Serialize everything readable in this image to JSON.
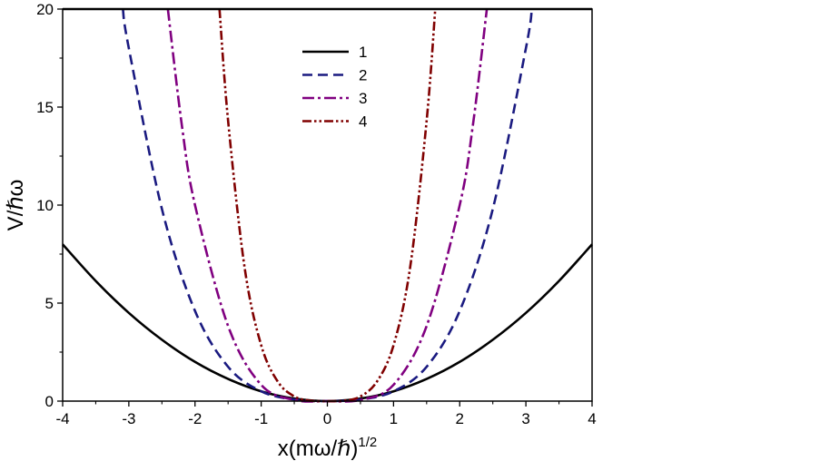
{
  "chart_data": {
    "type": "line",
    "xlabel": "x(mω/ℏ)",
    "xlabel_sup": "1/2",
    "ylabel": "V/ℏω",
    "xlim": [
      -4,
      4
    ],
    "ylim": [
      0,
      20
    ],
    "xticks": [
      -4,
      -3,
      -2,
      -1,
      0,
      1,
      2,
      3,
      4
    ],
    "xtick_labels": [
      "-4",
      "-3",
      "-2",
      "-1",
      "0",
      "1",
      "2",
      "3",
      "4"
    ],
    "yticks": [
      0,
      5,
      10,
      15,
      20
    ],
    "ytick_labels": [
      "0",
      "5",
      "10",
      "15",
      "20"
    ],
    "grid": false,
    "legend_position": "top-center",
    "series": [
      {
        "name": "1",
        "color": "#000000",
        "dash": "solid",
        "x": [
          -4,
          -3.5,
          -3,
          -2.5,
          -2,
          -1.5,
          -1,
          -0.5,
          0,
          0.5,
          1,
          1.5,
          2,
          2.5,
          3,
          3.5,
          4
        ],
        "y": [
          8,
          6.13,
          4.5,
          3.13,
          2,
          1.13,
          0.5,
          0.13,
          0,
          0.13,
          0.5,
          1.13,
          2,
          3.13,
          4.5,
          6.13,
          8
        ]
      },
      {
        "name": "2",
        "color": "#1a1a80",
        "dash": "dash",
        "x": [
          -3.09,
          -3,
          -2.5,
          -2,
          -1.5,
          -1,
          -0.5,
          0,
          0.5,
          1,
          1.5,
          2,
          2.5,
          3,
          3.09
        ],
        "y": [
          20,
          18.0,
          9.8,
          4.6,
          1.75,
          0.5,
          0.08,
          0,
          0.08,
          0.5,
          1.75,
          4.6,
          9.8,
          18.0,
          20
        ]
      },
      {
        "name": "3",
        "color": "#800080",
        "dash": "dashdot",
        "x": [
          -2.41,
          -2.2,
          -2,
          -1.5,
          -1,
          -0.5,
          0,
          0.5,
          1,
          1.5,
          2,
          2.2,
          2.41
        ],
        "y": [
          20,
          14.1,
          10.0,
          3.83,
          0.83,
          0.06,
          0,
          0.06,
          0.83,
          3.83,
          10.0,
          14.1,
          20
        ]
      },
      {
        "name": "4",
        "color": "#800000",
        "dash": "dashdotdot",
        "x": [
          -1.63,
          -1.5,
          -1.25,
          -1,
          -0.75,
          -0.5,
          -0.25,
          0,
          0.25,
          0.5,
          0.75,
          1,
          1.25,
          1.5,
          1.63
        ],
        "y": [
          20,
          14.3,
          6.8,
          2.85,
          1.0,
          0.24,
          0.02,
          0,
          0.02,
          0.24,
          1.0,
          2.85,
          6.8,
          14.3,
          20
        ]
      }
    ]
  }
}
